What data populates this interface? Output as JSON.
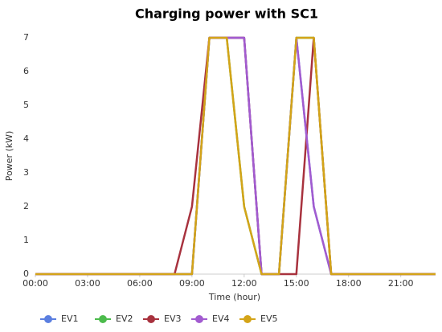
{
  "chart_data": {
    "type": "line",
    "title": "Charging power with SC1",
    "x_label": "Time (hour)",
    "y_label": "Power (kW)",
    "x": [
      0,
      1,
      2,
      3,
      4,
      5,
      6,
      7,
      8,
      9,
      10,
      11,
      12,
      13,
      14,
      15,
      16,
      17,
      18,
      19,
      20,
      21,
      22,
      23
    ],
    "xlim": [
      0,
      23
    ],
    "xticks": [
      {
        "value": 0,
        "label": "00:00"
      },
      {
        "value": 3,
        "label": "03:00"
      },
      {
        "value": 6,
        "label": "06:00"
      },
      {
        "value": 9,
        "label": "09:00"
      },
      {
        "value": 12,
        "label": "12:00"
      },
      {
        "value": 15,
        "label": "15:00"
      },
      {
        "value": 18,
        "label": "18:00"
      },
      {
        "value": 21,
        "label": "21:00"
      }
    ],
    "ylim": [
      0,
      7
    ],
    "yticks": [
      0,
      1,
      2,
      3,
      4,
      5,
      6,
      7
    ],
    "series": [
      {
        "name": "EV1",
        "color": "#5b7fe0",
        "values": [
          0,
          0,
          0,
          0,
          0,
          0,
          0,
          0,
          0,
          0,
          7,
          7,
          7,
          0,
          0,
          7,
          2,
          0,
          0,
          0,
          0,
          0,
          0,
          0
        ]
      },
      {
        "name": "EV2",
        "color": "#4cbb4c",
        "values": [
          0,
          0,
          0,
          0,
          0,
          0,
          0,
          0,
          0,
          0,
          7,
          7,
          2,
          0,
          0,
          7,
          7,
          0,
          0,
          0,
          0,
          0,
          0,
          0
        ]
      },
      {
        "name": "EV3",
        "color": "#a8323e",
        "values": [
          0,
          0,
          0,
          0,
          0,
          0,
          0,
          0,
          0,
          2,
          7,
          7,
          7,
          0,
          0,
          0,
          7,
          0,
          0,
          0,
          0,
          0,
          0,
          0
        ]
      },
      {
        "name": "EV4",
        "color": "#a25bd0",
        "values": [
          0,
          0,
          0,
          0,
          0,
          0,
          0,
          0,
          0,
          0,
          7,
          7,
          7,
          0,
          0,
          7,
          2,
          0,
          0,
          0,
          0,
          0,
          0,
          0
        ]
      },
      {
        "name": "EV5",
        "color": "#d4a418",
        "values": [
          0,
          0,
          0,
          0,
          0,
          0,
          0,
          0,
          0,
          0,
          7,
          7,
          2,
          0,
          0,
          7,
          7,
          0,
          0,
          0,
          0,
          0,
          0,
          0
        ]
      }
    ]
  }
}
